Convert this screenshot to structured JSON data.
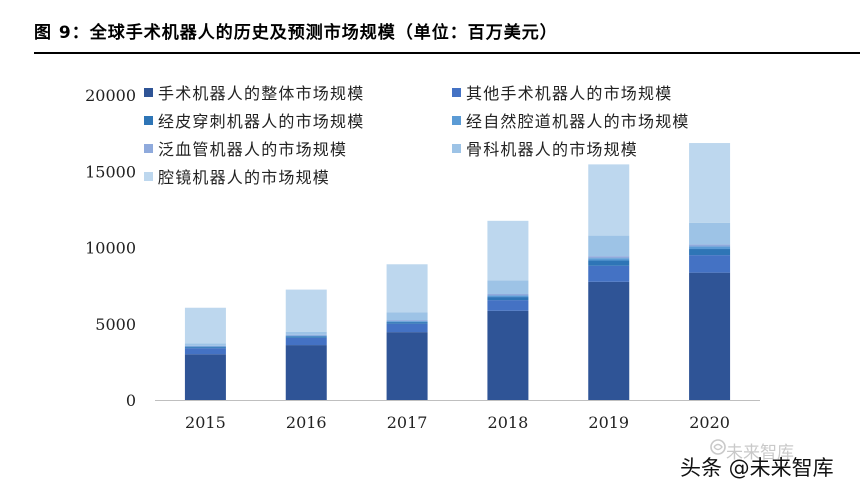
{
  "header": {
    "title": "图 9：全球手术机器人的历史及预测市场规模（单位：百万美元）"
  },
  "chart_data": {
    "type": "bar",
    "stacked": true,
    "categories": [
      "2015",
      "2016",
      "2017",
      "2018",
      "2019",
      "2020"
    ],
    "ylim": [
      0,
      20000
    ],
    "yticks": [
      "0",
      "5000",
      "10000",
      "15000",
      "20000"
    ],
    "legend_position": "top-left",
    "series": [
      {
        "name": "手术机器人的整体市场规模",
        "color": "#2f5496",
        "values": [
          3000,
          3600,
          4450,
          5850,
          7750,
          8350
        ]
      },
      {
        "name": "其他手术机器人的市场规模",
        "color": "#4472c4",
        "values": [
          400,
          480,
          550,
          700,
          1050,
          1150
        ]
      },
      {
        "name": "经皮穿刺机器人的市场规模",
        "color": "#2e75b6",
        "values": [
          70,
          90,
          110,
          200,
          350,
          400
        ]
      },
      {
        "name": "经自然腔道机器人的市场规模",
        "color": "#5b9bd5",
        "values": [
          40,
          50,
          60,
          100,
          150,
          170
        ]
      },
      {
        "name": "泛血管机器人的市场规模",
        "color": "#8faadc",
        "values": [
          50,
          60,
          70,
          100,
          130,
          140
        ]
      },
      {
        "name": "骨科机器人的市场规模",
        "color": "#9dc3e6",
        "values": [
          150,
          200,
          500,
          900,
          1350,
          1400
        ]
      },
      {
        "name": "腔镜机器人的市场规模",
        "color": "#bdd7ee",
        "values": [
          2340,
          2760,
          3160,
          3900,
          4670,
          5240
        ]
      }
    ]
  },
  "watermark": {
    "top_text": "未来智库",
    "bottom_text": "头条 @未来智库"
  }
}
